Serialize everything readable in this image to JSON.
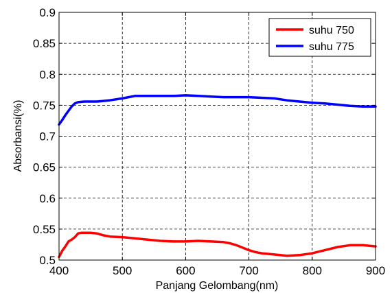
{
  "chart_data": {
    "type": "line",
    "title": "",
    "xlabel": "Panjang Gelombang(nm)",
    "ylabel": "Absorbansi(%)",
    "xlim": [
      400,
      900
    ],
    "ylim": [
      0.5,
      0.9
    ],
    "x_ticks": [
      400,
      500,
      600,
      700,
      800,
      900
    ],
    "y_ticks": [
      0.5,
      0.55,
      0.6,
      0.65,
      0.7,
      0.75,
      0.8,
      0.85,
      0.9
    ],
    "x_tick_labels": [
      "400",
      "500",
      "600",
      "700",
      "800",
      "900"
    ],
    "y_tick_labels": [
      "0.5",
      "0.55",
      "0.6",
      "0.65",
      "0.7",
      "0.75",
      "0.8",
      "0.85",
      "0.9"
    ],
    "grid": true,
    "grid_style": "dashed",
    "legend_position": "top-right",
    "series": [
      {
        "name": "suhu 750",
        "color": "#ff0000",
        "x": [
          400,
          405,
          410,
          415,
          420,
          425,
          430,
          435,
          440,
          450,
          460,
          470,
          480,
          500,
          520,
          540,
          560,
          580,
          600,
          620,
          640,
          660,
          670,
          680,
          690,
          700,
          710,
          720,
          740,
          760,
          780,
          800,
          820,
          840,
          860,
          880,
          900
        ],
        "y": [
          0.505,
          0.515,
          0.522,
          0.53,
          0.533,
          0.537,
          0.543,
          0.544,
          0.544,
          0.544,
          0.543,
          0.54,
          0.538,
          0.537,
          0.535,
          0.533,
          0.531,
          0.53,
          0.53,
          0.531,
          0.53,
          0.529,
          0.527,
          0.524,
          0.52,
          0.516,
          0.513,
          0.511,
          0.509,
          0.507,
          0.508,
          0.511,
          0.516,
          0.521,
          0.524,
          0.524,
          0.522
        ]
      },
      {
        "name": "suhu 775",
        "color": "#0000ff",
        "x": [
          400,
          405,
          410,
          415,
          420,
          425,
          430,
          440,
          460,
          480,
          500,
          520,
          540,
          560,
          580,
          600,
          620,
          640,
          660,
          680,
          700,
          720,
          740,
          760,
          780,
          800,
          820,
          840,
          860,
          880,
          900
        ],
        "y": [
          0.719,
          0.726,
          0.734,
          0.741,
          0.748,
          0.753,
          0.755,
          0.756,
          0.756,
          0.758,
          0.761,
          0.765,
          0.765,
          0.765,
          0.765,
          0.766,
          0.765,
          0.764,
          0.763,
          0.763,
          0.763,
          0.762,
          0.761,
          0.758,
          0.756,
          0.754,
          0.753,
          0.751,
          0.749,
          0.748,
          0.748
        ]
      }
    ]
  }
}
